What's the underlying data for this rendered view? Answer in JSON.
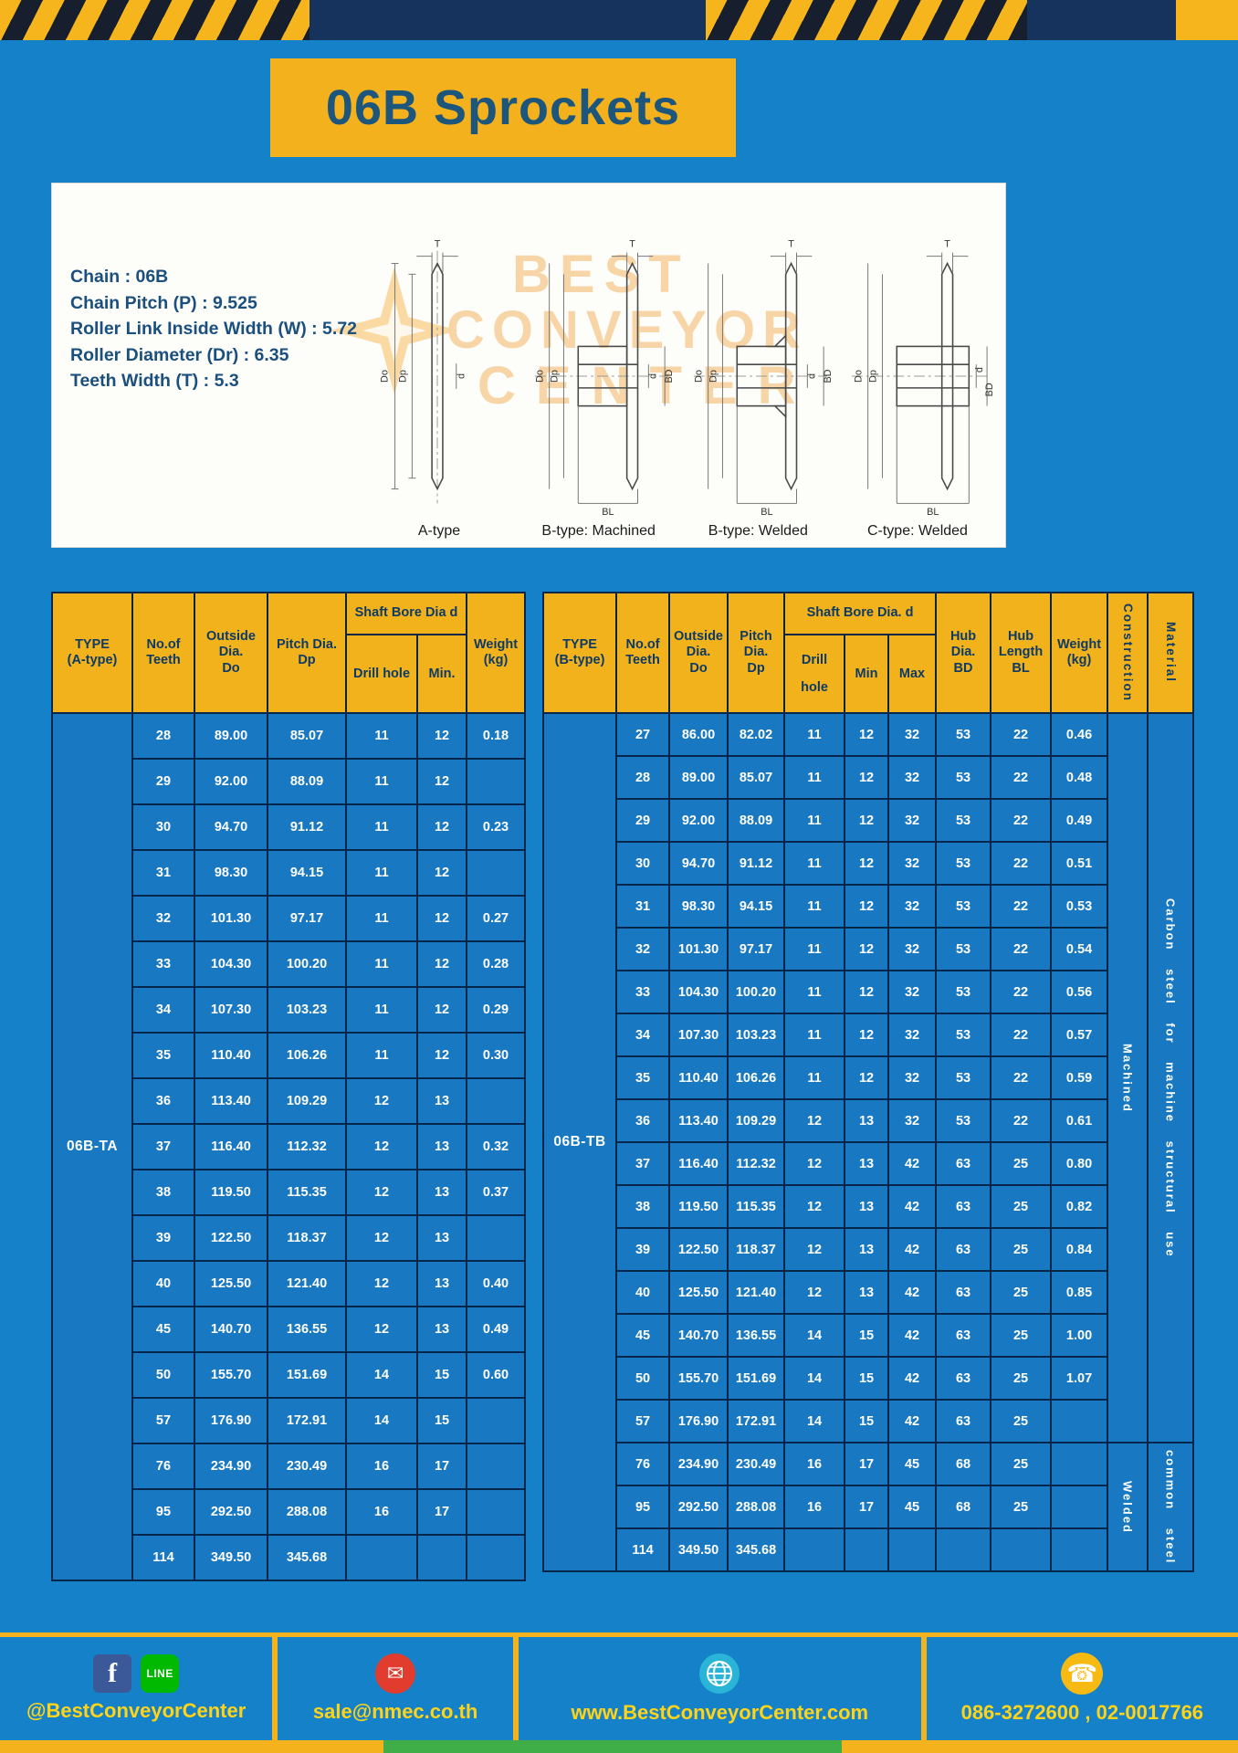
{
  "page_title": "06B Sprockets",
  "specs": [
    "Chain  :  06B",
    "Chain Pitch (P)  :  9.525",
    "Roller Link Inside Width (W)  :  5.72",
    "Roller Diameter (Dr)  :  6.35",
    "Teeth Width (T)  :  5.3"
  ],
  "watermark": {
    "line1": "BEST",
    "line2": "CONVEYOR",
    "line3": "CENTER"
  },
  "dims": {
    "T": "T",
    "Do": "Do",
    "Dp": "Dp",
    "d": "d",
    "BD": "BD",
    "BL": "BL"
  },
  "drawings": {
    "captions": [
      "A-type",
      "B-type: Machined",
      "B-type: Welded",
      "C-type: Welded"
    ]
  },
  "tableA": {
    "type_cell": "06B-TA",
    "headers": {
      "type": "TYPE\n(A-type)",
      "teeth": "No.of\nTeeth",
      "outside": "Outside\nDia.\nDo",
      "pitch": "Pitch Dia.\nDp",
      "shaft_group": "Shaft Bore Dia d",
      "drill": "Drill hole",
      "min": "Min.",
      "weight": "Weight\n(kg)"
    },
    "rows": [
      [
        "28",
        "89.00",
        "85.07",
        "11",
        "12",
        "0.18"
      ],
      [
        "29",
        "92.00",
        "88.09",
        "11",
        "12",
        ""
      ],
      [
        "30",
        "94.70",
        "91.12",
        "11",
        "12",
        "0.23"
      ],
      [
        "31",
        "98.30",
        "94.15",
        "11",
        "12",
        ""
      ],
      [
        "32",
        "101.30",
        "97.17",
        "11",
        "12",
        "0.27"
      ],
      [
        "33",
        "104.30",
        "100.20",
        "11",
        "12",
        "0.28"
      ],
      [
        "34",
        "107.30",
        "103.23",
        "11",
        "12",
        "0.29"
      ],
      [
        "35",
        "110.40",
        "106.26",
        "11",
        "12",
        "0.30"
      ],
      [
        "36",
        "113.40",
        "109.29",
        "12",
        "13",
        ""
      ],
      [
        "37",
        "116.40",
        "112.32",
        "12",
        "13",
        "0.32"
      ],
      [
        "38",
        "119.50",
        "115.35",
        "12",
        "13",
        "0.37"
      ],
      [
        "39",
        "122.50",
        "118.37",
        "12",
        "13",
        ""
      ],
      [
        "40",
        "125.50",
        "121.40",
        "12",
        "13",
        "0.40"
      ],
      [
        "45",
        "140.70",
        "136.55",
        "12",
        "13",
        "0.49"
      ],
      [
        "50",
        "155.70",
        "151.69",
        "14",
        "15",
        "0.60"
      ],
      [
        "57",
        "176.90",
        "172.91",
        "14",
        "15",
        ""
      ],
      [
        "76",
        "234.90",
        "230.49",
        "16",
        "17",
        ""
      ],
      [
        "95",
        "292.50",
        "288.08",
        "16",
        "17",
        ""
      ],
      [
        "114",
        "349.50",
        "345.68",
        "",
        "",
        ""
      ]
    ]
  },
  "tableB": {
    "type_cell": "06B-TB",
    "headers": {
      "type": "TYPE\n(B-type)",
      "teeth": "No.of\nTeeth",
      "outside": "Outside\nDia.\nDo",
      "pitch": "Pitch\nDia.\nDp",
      "shaft_group": "Shaft Bore Dia. d",
      "drill": "Drill hole",
      "min": "Min",
      "max": "Max",
      "hub_dia": "Hub\nDia.\nBD",
      "hub_len": "Hub\nLength\nBL",
      "weight": "Weight\n(kg)",
      "construction": "Construction",
      "material": "Material"
    },
    "rows": [
      [
        "27",
        "86.00",
        "82.02",
        "11",
        "12",
        "32",
        "53",
        "22",
        "0.46"
      ],
      [
        "28",
        "89.00",
        "85.07",
        "11",
        "12",
        "32",
        "53",
        "22",
        "0.48"
      ],
      [
        "29",
        "92.00",
        "88.09",
        "11",
        "12",
        "32",
        "53",
        "22",
        "0.49"
      ],
      [
        "30",
        "94.70",
        "91.12",
        "11",
        "12",
        "32",
        "53",
        "22",
        "0.51"
      ],
      [
        "31",
        "98.30",
        "94.15",
        "11",
        "12",
        "32",
        "53",
        "22",
        "0.53"
      ],
      [
        "32",
        "101.30",
        "97.17",
        "11",
        "12",
        "32",
        "53",
        "22",
        "0.54"
      ],
      [
        "33",
        "104.30",
        "100.20",
        "11",
        "12",
        "32",
        "53",
        "22",
        "0.56"
      ],
      [
        "34",
        "107.30",
        "103.23",
        "11",
        "12",
        "32",
        "53",
        "22",
        "0.57"
      ],
      [
        "35",
        "110.40",
        "106.26",
        "11",
        "12",
        "32",
        "53",
        "22",
        "0.59"
      ],
      [
        "36",
        "113.40",
        "109.29",
        "12",
        "13",
        "32",
        "53",
        "22",
        "0.61"
      ],
      [
        "37",
        "116.40",
        "112.32",
        "12",
        "13",
        "42",
        "63",
        "25",
        "0.80"
      ],
      [
        "38",
        "119.50",
        "115.35",
        "12",
        "13",
        "42",
        "63",
        "25",
        "0.82"
      ],
      [
        "39",
        "122.50",
        "118.37",
        "12",
        "13",
        "42",
        "63",
        "25",
        "0.84"
      ],
      [
        "40",
        "125.50",
        "121.40",
        "12",
        "13",
        "42",
        "63",
        "25",
        "0.85"
      ],
      [
        "45",
        "140.70",
        "136.55",
        "14",
        "15",
        "42",
        "63",
        "25",
        "1.00"
      ],
      [
        "50",
        "155.70",
        "151.69",
        "14",
        "15",
        "42",
        "63",
        "25",
        "1.07"
      ],
      [
        "57",
        "176.90",
        "172.91",
        "14",
        "15",
        "42",
        "63",
        "25",
        ""
      ],
      [
        "76",
        "234.90",
        "230.49",
        "16",
        "17",
        "45",
        "68",
        "25",
        ""
      ],
      [
        "95",
        "292.50",
        "288.08",
        "16",
        "17",
        "45",
        "68",
        "25",
        ""
      ],
      [
        "114",
        "349.50",
        "345.68",
        "",
        "",
        "",
        "",
        "",
        ""
      ]
    ],
    "construction": {
      "machined": "Machined",
      "machined_span": 17,
      "welded": "Welded",
      "welded_span": 3
    },
    "material": {
      "carbon": "Carbon steel for machine structural use",
      "carbon_span": 17,
      "common": "common steel",
      "common_span": 3
    }
  },
  "footer": {
    "facebook_label": "f",
    "line_label": "LINE",
    "social_text": "@BestConveyorCenter",
    "email_text": "sale@nmec.co.th",
    "website_text": "www.BestConveyorCenter.com",
    "phone_text": "086-3272600 , 02-0017766"
  }
}
